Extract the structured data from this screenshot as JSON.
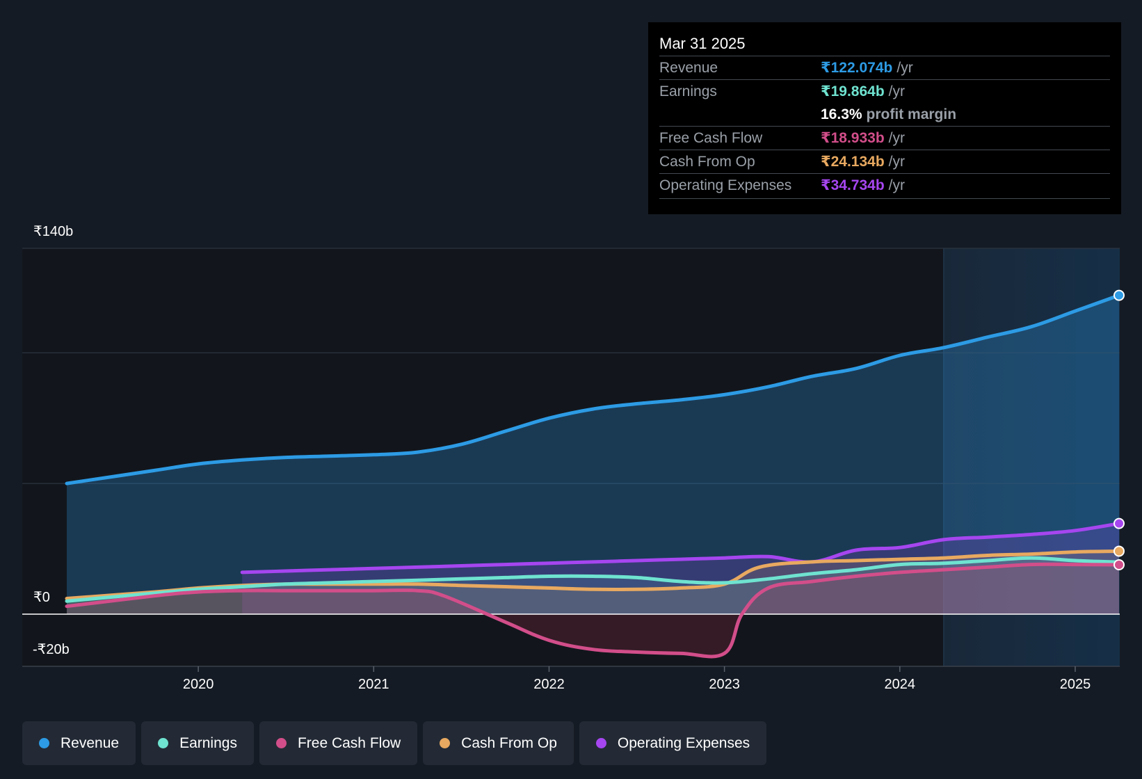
{
  "tooltip": {
    "date": "Mar 31 2025",
    "rows": [
      {
        "label": "Revenue",
        "value": "₹122.074b",
        "unit": "/yr",
        "color": "#2d9be5"
      },
      {
        "label": "Earnings",
        "value": "₹19.864b",
        "unit": "/yr",
        "color": "#6fe3d0"
      },
      {
        "label": "",
        "value": "16.3%",
        "unit": "profit margin",
        "color": "#ffffff"
      },
      {
        "label": "Free Cash Flow",
        "value": "₹18.933b",
        "unit": "/yr",
        "color": "#d24e8a"
      },
      {
        "label": "Cash From Op",
        "value": "₹24.134b",
        "unit": "/yr",
        "color": "#e8a960"
      },
      {
        "label": "Operating Expenses",
        "value": "₹34.734b",
        "unit": "/yr",
        "color": "#a646f0"
      }
    ]
  },
  "y_axis_labels": {
    "top": "₹140b",
    "zero": "₹0",
    "bottom": "-₹20b"
  },
  "legend": [
    {
      "label": "Revenue",
      "color": "#2d9be5"
    },
    {
      "label": "Earnings",
      "color": "#6fe3d0"
    },
    {
      "label": "Free Cash Flow",
      "color": "#d24e8a"
    },
    {
      "label": "Cash From Op",
      "color": "#e8a960"
    },
    {
      "label": "Operating Expenses",
      "color": "#a646f0"
    }
  ],
  "chart_data": {
    "type": "line",
    "title": "",
    "xlabel": "",
    "ylabel": "",
    "ylim": [
      -20,
      140
    ],
    "xlim": [
      2019.25,
      2025.25
    ],
    "x_ticks": [
      2020,
      2021,
      2022,
      2023,
      2024,
      2025
    ],
    "x_tick_labels": [
      "2020",
      "2021",
      "2022",
      "2023",
      "2024",
      "2025"
    ],
    "y_ticks": [
      -20,
      0,
      140
    ],
    "y_tick_labels": [
      "-₹20b",
      "₹0",
      "₹140b"
    ],
    "forecast_shade_start": 2024.25,
    "series": [
      {
        "name": "Revenue",
        "color": "#2d9be5",
        "fill": true,
        "x": [
          2019.25,
          2019.75,
          2020.0,
          2020.25,
          2020.5,
          2020.75,
          2021.0,
          2021.25,
          2021.5,
          2021.75,
          2022.0,
          2022.25,
          2022.5,
          2022.75,
          2023.0,
          2023.25,
          2023.5,
          2023.75,
          2024.0,
          2024.25,
          2024.5,
          2024.75,
          2025.0,
          2025.25
        ],
        "y": [
          50,
          55,
          57.5,
          59,
          60,
          60.5,
          61,
          62,
          65,
          70,
          75,
          78.5,
          80.5,
          82,
          84,
          87,
          91,
          94,
          99,
          102,
          106,
          110,
          116,
          122
        ]
      },
      {
        "name": "Earnings",
        "color": "#6fe3d0",
        "fill": true,
        "x": [
          2019.25,
          2019.75,
          2020.0,
          2020.25,
          2020.5,
          2020.75,
          2021.0,
          2021.25,
          2021.5,
          2021.75,
          2022.0,
          2022.25,
          2022.5,
          2022.75,
          2023.0,
          2023.25,
          2023.5,
          2023.75,
          2024.0,
          2024.25,
          2024.5,
          2024.75,
          2025.0,
          2025.25
        ],
        "y": [
          5,
          8,
          9.5,
          10.5,
          11.5,
          12,
          12.5,
          13,
          13.5,
          14,
          14.5,
          14.5,
          14,
          12.5,
          12,
          13.5,
          15.5,
          17,
          19,
          19.5,
          20.5,
          21.5,
          20.5,
          19.9
        ]
      },
      {
        "name": "Free Cash Flow",
        "color": "#d24e8a",
        "fill": true,
        "x": [
          2019.25,
          2019.75,
          2020.0,
          2020.25,
          2020.5,
          2020.75,
          2021.0,
          2021.25,
          2021.4,
          2021.75,
          2022.0,
          2022.25,
          2022.5,
          2022.75,
          2023.0,
          2023.1,
          2023.25,
          2023.5,
          2023.75,
          2024.0,
          2024.25,
          2024.5,
          2024.75,
          2025.0,
          2025.25
        ],
        "y": [
          3,
          7,
          8.5,
          9,
          9,
          9,
          9,
          9,
          7,
          -3,
          -10,
          -13.5,
          -14.5,
          -15,
          -15,
          0,
          10,
          12.5,
          14.5,
          16,
          17,
          18,
          19,
          19,
          18.9
        ]
      },
      {
        "name": "Cash From Op",
        "color": "#e8a960",
        "fill": true,
        "x": [
          2019.25,
          2019.75,
          2020.0,
          2020.25,
          2020.5,
          2020.75,
          2021.0,
          2021.25,
          2021.5,
          2021.75,
          2022.0,
          2022.25,
          2022.5,
          2022.75,
          2023.0,
          2023.2,
          2023.5,
          2023.75,
          2024.0,
          2024.25,
          2024.5,
          2024.75,
          2025.0,
          2025.25
        ],
        "y": [
          6,
          8.5,
          10,
          11,
          11.5,
          11.5,
          11.5,
          11.5,
          11,
          10.5,
          10,
          9.5,
          9.5,
          10,
          11.5,
          18,
          20,
          20.5,
          21,
          21.5,
          22.5,
          23,
          23.8,
          24.1
        ]
      },
      {
        "name": "Operating Expenses",
        "color": "#a646f0",
        "fill": true,
        "x": [
          2020.25,
          2020.5,
          2020.75,
          2021.0,
          2021.25,
          2021.5,
          2021.75,
          2022.0,
          2022.25,
          2022.5,
          2022.75,
          2023.0,
          2023.25,
          2023.5,
          2023.75,
          2024.0,
          2024.25,
          2024.5,
          2024.75,
          2025.0,
          2025.25
        ],
        "y": [
          16,
          16.5,
          17,
          17.5,
          18,
          18.5,
          19,
          19.5,
          20,
          20.5,
          21,
          21.5,
          22,
          20,
          24.5,
          25.5,
          28.5,
          29.5,
          30.5,
          32,
          34.7
        ]
      }
    ]
  }
}
